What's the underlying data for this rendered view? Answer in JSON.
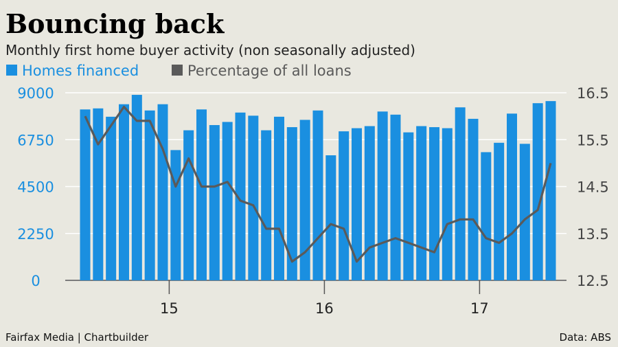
{
  "chart_data": {
    "type": "bar",
    "title": "Bouncing back",
    "subtitle": "Monthly first home buyer activity (non seasonally adjusted)",
    "legend": [
      {
        "name": "Homes financed",
        "color": "#1a8fe0"
      },
      {
        "name": "Percentage of all loans",
        "color": "#5a5a5a"
      }
    ],
    "y_left": {
      "ticks": [
        "9000",
        "6750",
        "4500",
        "2250",
        "0"
      ],
      "ylim": [
        0,
        9000
      ]
    },
    "y_right": {
      "ticks": [
        "16.5",
        "15.5",
        "14.5",
        "13.5",
        "12.5"
      ],
      "ylim": [
        12.5,
        16.5
      ]
    },
    "x_ticks": [
      {
        "label": "15",
        "index": 6.5
      },
      {
        "label": "16",
        "index": 18.5
      },
      {
        "label": "17",
        "index": 30.5
      }
    ],
    "series": [
      {
        "name": "Homes financed",
        "type": "bar",
        "axis": "left",
        "values": [
          8200,
          8250,
          7850,
          8450,
          8900,
          8150,
          8450,
          6250,
          7200,
          8200,
          7450,
          7600,
          8050,
          7900,
          7200,
          7850,
          7350,
          7700,
          8150,
          6000,
          7150,
          7300,
          7400,
          8100,
          7950,
          7100,
          7400,
          7350,
          7300,
          8300,
          7750,
          6150,
          6600,
          8000,
          6550,
          8500,
          8600
        ]
      },
      {
        "name": "Percentage of all loans",
        "type": "line",
        "axis": "right",
        "values": [
          16.0,
          15.4,
          15.8,
          16.2,
          15.9,
          15.9,
          15.3,
          14.5,
          15.1,
          14.5,
          14.5,
          14.6,
          14.2,
          14.1,
          13.6,
          13.6,
          12.9,
          13.1,
          13.4,
          13.7,
          13.6,
          12.9,
          13.2,
          13.3,
          13.4,
          13.3,
          13.2,
          13.1,
          13.7,
          13.8,
          13.8,
          13.4,
          13.3,
          13.5,
          13.8,
          14.0,
          15.0
        ]
      }
    ]
  },
  "footer": {
    "source_left": "Fairfax Media | Chartbuilder",
    "source_right": "Data: ABS"
  },
  "colors": {
    "bar": "#1a8fe0",
    "line": "#5a5a5a",
    "background": "#e9e8e0",
    "right_axis": "#444444"
  }
}
